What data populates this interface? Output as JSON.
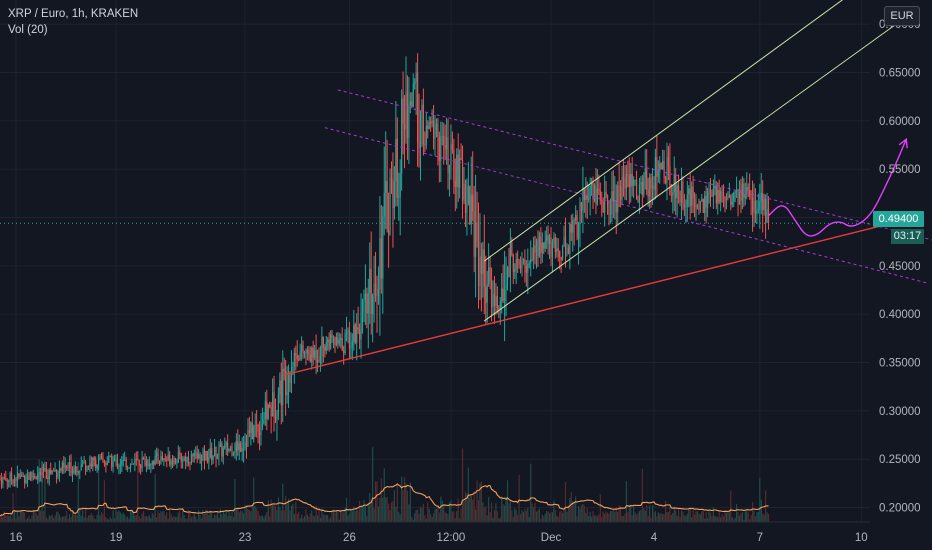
{
  "header": {
    "symbol_line": "XRP / Euro, 1h, KRAKEN",
    "volume_line": "Vol (20)"
  },
  "currency_button": "EUR",
  "last_price": {
    "label": "0.49400",
    "value": 0.494,
    "timer": "03:17"
  },
  "colors": {
    "background": "#131722",
    "up": "#26a69a",
    "down": "#ef5350",
    "grid": "#1e2230",
    "volume_ma": "#f5a05a",
    "support": "#e23a3a",
    "channel": "#c8e6a8",
    "wedge": "#a23ad0",
    "projection": "#e040fb"
  },
  "chart_data": {
    "type": "candlestick",
    "title": "XRP / Euro, 1h, KRAKEN",
    "indicator": "Vol (20)",
    "y_axis": {
      "side": "right",
      "ticks": [
        "0.20000",
        "0.25000",
        "0.30000",
        "0.35000",
        "0.40000",
        "0.45000",
        "0.50000",
        "0.55000",
        "0.60000",
        "0.65000",
        "0.70000"
      ],
      "range": [
        0.185,
        0.725
      ]
    },
    "x_axis": {
      "ticks": [
        "16",
        "19",
        "23",
        "26",
        "12:00",
        "Dec",
        "4",
        "7",
        "10"
      ],
      "range_hours": [
        0,
        600
      ]
    },
    "price_path": [
      [
        0,
        0.229
      ],
      [
        20,
        0.232
      ],
      [
        45,
        0.24
      ],
      [
        70,
        0.248
      ],
      [
        90,
        0.245
      ],
      [
        110,
        0.25
      ],
      [
        140,
        0.252
      ],
      [
        150,
        0.257
      ],
      [
        165,
        0.265
      ],
      [
        178,
        0.285
      ],
      [
        190,
        0.31
      ],
      [
        198,
        0.34
      ],
      [
        205,
        0.362
      ],
      [
        215,
        0.356
      ],
      [
        225,
        0.372
      ],
      [
        235,
        0.368
      ],
      [
        245,
        0.383
      ],
      [
        252,
        0.4
      ],
      [
        260,
        0.45
      ],
      [
        268,
        0.52
      ],
      [
        275,
        0.56
      ],
      [
        280,
        0.61
      ],
      [
        286,
        0.63
      ],
      [
        292,
        0.58
      ],
      [
        298,
        0.595
      ],
      [
        304,
        0.575
      ],
      [
        310,
        0.56
      ],
      [
        318,
        0.54
      ],
      [
        324,
        0.515
      ],
      [
        330,
        0.465
      ],
      [
        336,
        0.43
      ],
      [
        342,
        0.413
      ],
      [
        346,
        0.408
      ],
      [
        352,
        0.455
      ],
      [
        360,
        0.447
      ],
      [
        368,
        0.465
      ],
      [
        376,
        0.475
      ],
      [
        384,
        0.465
      ],
      [
        392,
        0.475
      ],
      [
        400,
        0.512
      ],
      [
        408,
        0.53
      ],
      [
        414,
        0.52
      ],
      [
        420,
        0.51
      ],
      [
        426,
        0.527
      ],
      [
        432,
        0.54
      ],
      [
        440,
        0.525
      ],
      [
        448,
        0.54
      ],
      [
        456,
        0.555
      ],
      [
        462,
        0.54
      ],
      [
        468,
        0.528
      ],
      [
        476,
        0.52
      ],
      [
        484,
        0.514
      ],
      [
        492,
        0.522
      ],
      [
        500,
        0.524
      ],
      [
        508,
        0.522
      ],
      [
        514,
        0.526
      ],
      [
        520,
        0.518
      ],
      [
        526,
        0.506
      ],
      [
        530,
        0.494
      ]
    ],
    "drawings": {
      "support_line": [
        [
          196,
          0.337
        ],
        [
          620,
          0.496
        ]
      ],
      "channel_lower": [
        [
          334,
          0.393
        ],
        [
          618,
          0.7
        ]
      ],
      "channel_upper": [
        [
          334,
          0.455
        ],
        [
          590,
          0.735
        ]
      ],
      "wedge_upper": [
        [
          233,
          0.632
        ],
        [
          645,
          0.476
        ]
      ],
      "wedge_lower": [
        [
          224,
          0.593
        ],
        [
          640,
          0.432
        ]
      ],
      "projection": [
        [
          530,
          0.502
        ],
        [
          540,
          0.516
        ],
        [
          548,
          0.498
        ],
        [
          556,
          0.48
        ],
        [
          564,
          0.482
        ],
        [
          572,
          0.494
        ],
        [
          580,
          0.496
        ],
        [
          586,
          0.49
        ],
        [
          594,
          0.494
        ],
        [
          602,
          0.506
        ],
        [
          610,
          0.53
        ],
        [
          618,
          0.556
        ],
        [
          625,
          0.581
        ]
      ]
    }
  }
}
